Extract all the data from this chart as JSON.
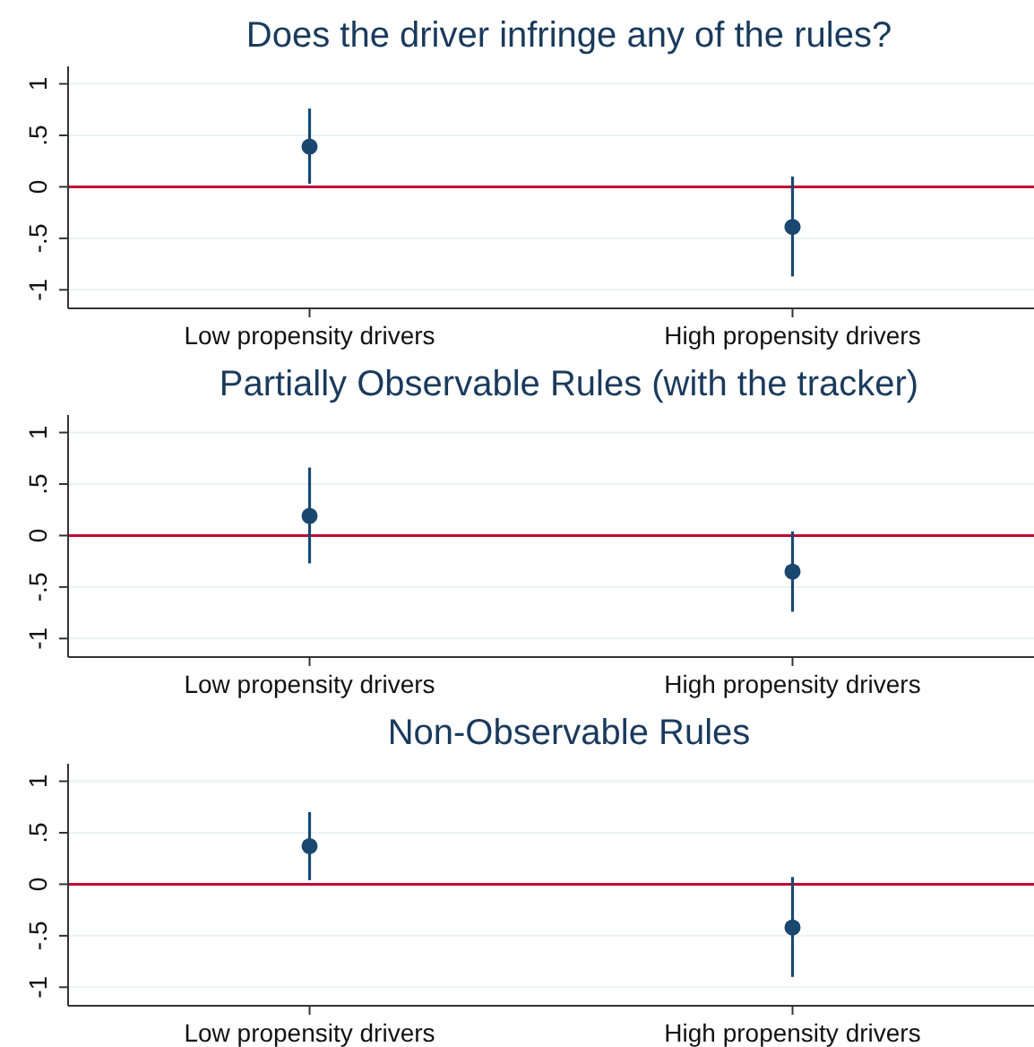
{
  "chart_data": [
    {
      "type": "scatter",
      "title": "Does the driver infringe any of the rules?",
      "categories": [
        "Low propensity drivers",
        "High propensity drivers"
      ],
      "values": [
        0.39,
        -0.39
      ],
      "errors": [
        [
          0.03,
          0.76
        ],
        [
          -0.87,
          0.1
        ]
      ],
      "color": "#1a476f",
      "marker": "circle",
      "ylim": [
        -1.18,
        1.17
      ],
      "yticks": [
        {
          "value": -1,
          "label": "-1"
        },
        {
          "value": -0.5,
          "label": "-.5"
        },
        {
          "value": 0,
          "label": "0"
        },
        {
          "value": 0.5,
          "label": ".5"
        },
        {
          "value": 1,
          "label": "1"
        }
      ],
      "grid": "y",
      "ref_lines": [
        {
          "axis": "y",
          "value": 0,
          "color": "#c10534"
        }
      ]
    },
    {
      "type": "scatter",
      "title": "Partially Observable Rules (with the tracker)",
      "categories": [
        "Low propensity drivers",
        "High propensity drivers"
      ],
      "values": [
        0.19,
        -0.35
      ],
      "errors": [
        [
          -0.27,
          0.66
        ],
        [
          -0.74,
          0.04
        ]
      ],
      "color": "#1a476f",
      "marker": "circle",
      "ylim": [
        -1.18,
        1.17
      ],
      "yticks": [
        {
          "value": -1,
          "label": "-1"
        },
        {
          "value": -0.5,
          "label": "-.5"
        },
        {
          "value": 0,
          "label": "0"
        },
        {
          "value": 0.5,
          "label": ".5"
        },
        {
          "value": 1,
          "label": "1"
        }
      ],
      "grid": "y",
      "ref_lines": [
        {
          "axis": "y",
          "value": 0,
          "color": "#c10534"
        }
      ]
    },
    {
      "type": "scatter",
      "title": "Non-Observable Rules",
      "categories": [
        "Low propensity drivers",
        "High propensity drivers"
      ],
      "values": [
        0.37,
        -0.42
      ],
      "errors": [
        [
          0.04,
          0.7
        ],
        [
          -0.9,
          0.07
        ]
      ],
      "color": "#1a476f",
      "marker": "circle",
      "ylim": [
        -1.18,
        1.17
      ],
      "yticks": [
        {
          "value": -1,
          "label": "-1"
        },
        {
          "value": -0.5,
          "label": "-.5"
        },
        {
          "value": 0,
          "label": "0"
        },
        {
          "value": 0.5,
          "label": ".5"
        },
        {
          "value": 1,
          "label": "1"
        }
      ],
      "grid": "y",
      "ref_lines": [
        {
          "axis": "y",
          "value": 0,
          "color": "#c10534"
        }
      ]
    }
  ]
}
